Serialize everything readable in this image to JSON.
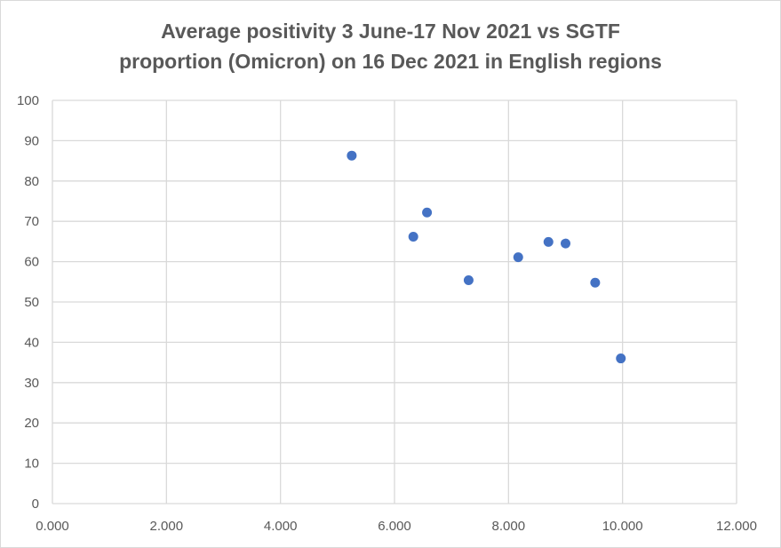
{
  "chart_data": {
    "type": "scatter",
    "title_lines": [
      "Average positivity 3 June-17 Nov 2021 vs SGTF",
      "proportion (Omicron) on 16 Dec 2021 in English regions"
    ],
    "xlabel": "",
    "ylabel": "",
    "xlim": [
      0,
      12
    ],
    "ylim": [
      0,
      100
    ],
    "x_ticks": [
      "0.000",
      "2.000",
      "4.000",
      "6.000",
      "8.000",
      "10.000",
      "12.000"
    ],
    "y_ticks": [
      "0",
      "10",
      "20",
      "30",
      "40",
      "50",
      "60",
      "70",
      "80",
      "90",
      "100"
    ],
    "grid": true,
    "marker_color": "#4472c4",
    "points": [
      {
        "x": 5.25,
        "y": 86.3
      },
      {
        "x": 6.33,
        "y": 66.2
      },
      {
        "x": 6.57,
        "y": 72.2
      },
      {
        "x": 7.3,
        "y": 55.4
      },
      {
        "x": 8.17,
        "y": 61.1
      },
      {
        "x": 8.7,
        "y": 64.9
      },
      {
        "x": 9.0,
        "y": 64.5
      },
      {
        "x": 9.52,
        "y": 54.8
      },
      {
        "x": 9.97,
        "y": 36.0
      }
    ]
  }
}
